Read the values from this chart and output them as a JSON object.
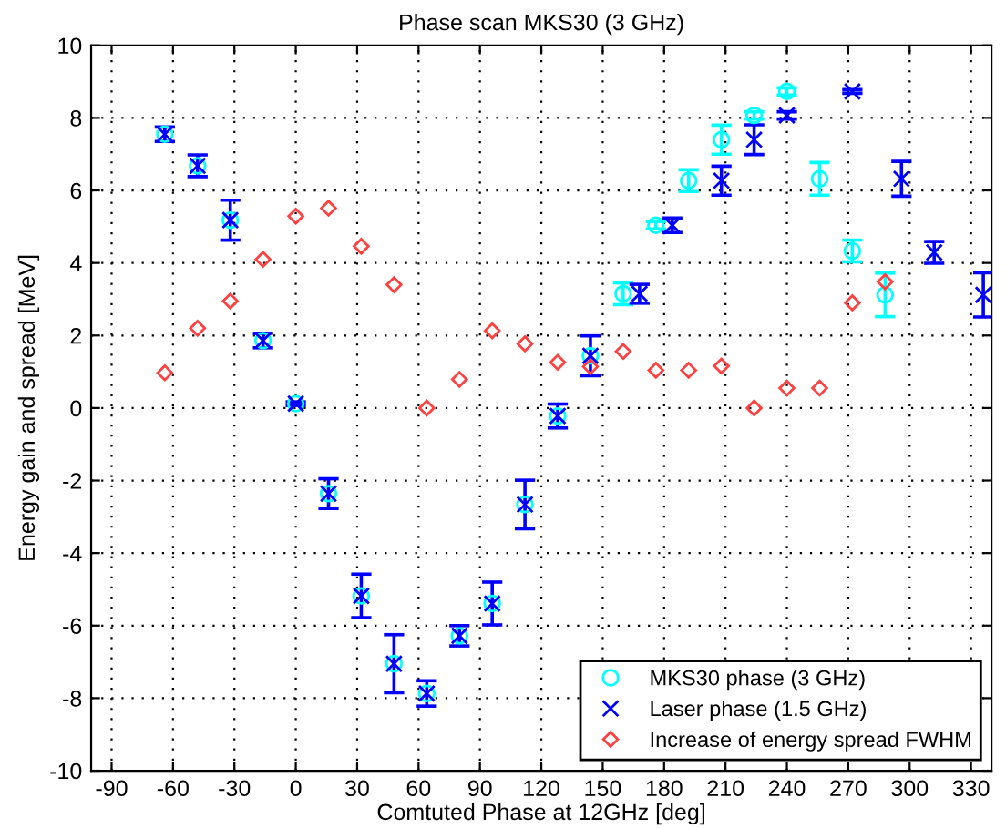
{
  "chart_data": {
    "type": "scatter",
    "title": "Phase scan MKS30 (3 GHz)",
    "xlabel": "Comtuted Phase at 12GHz [deg]",
    "ylabel": "Energy gain and spread [MeV]",
    "xlim": [
      -100,
      340
    ],
    "xticks": [
      -90,
      -60,
      -30,
      0,
      30,
      60,
      90,
      120,
      150,
      180,
      210,
      240,
      270,
      300,
      330
    ],
    "ylim": [
      -10,
      10
    ],
    "yticks": [
      -10,
      -8,
      -6,
      -4,
      -2,
      0,
      2,
      4,
      6,
      8,
      10
    ],
    "grid": true,
    "legend": "bottom right",
    "line_style": "none",
    "series": [
      {
        "name": "MKS30 phase (3 GHz)",
        "color": "#00ffff",
        "marker": "circle",
        "x": [
          -64,
          -48,
          -32,
          -16,
          0,
          16,
          32,
          48,
          64,
          80,
          96,
          112,
          128,
          144,
          160,
          176,
          192,
          208,
          224,
          240,
          256,
          272,
          288
        ],
        "values": [
          7.55,
          6.68,
          5.18,
          1.86,
          0.12,
          -2.36,
          -5.18,
          -7.05,
          -7.87,
          -6.28,
          -5.39,
          -2.66,
          -0.22,
          1.44,
          3.15,
          5.04,
          6.27,
          7.4,
          8.07,
          8.73,
          6.32,
          4.33,
          3.12
        ],
        "errors": [
          null,
          null,
          null,
          null,
          null,
          null,
          null,
          null,
          null,
          null,
          null,
          null,
          null,
          null,
          0.3,
          0.1,
          0.3,
          0.4,
          0.1,
          0.1,
          0.45,
          0.3,
          0.6
        ]
      },
      {
        "name": "Laser phase (1.5 GHz)",
        "color": "#0000ff",
        "marker": "cross",
        "x": [
          -64,
          -48,
          -32,
          -16,
          0,
          16,
          32,
          48,
          64,
          80,
          96,
          112,
          128,
          144,
          168,
          184,
          208,
          224,
          240,
          272,
          296,
          312,
          336
        ],
        "values": [
          7.55,
          6.68,
          5.18,
          1.86,
          0.12,
          -2.36,
          -5.18,
          -7.05,
          -7.87,
          -6.28,
          -5.39,
          -2.66,
          -0.22,
          1.44,
          3.15,
          5.04,
          6.27,
          7.4,
          8.07,
          8.73,
          6.32,
          4.29,
          3.12
        ],
        "errors": [
          0.2,
          0.3,
          0.55,
          0.2,
          0.05,
          0.41,
          0.6,
          0.8,
          0.35,
          0.28,
          0.59,
          0.67,
          0.33,
          0.55,
          0.26,
          0.2,
          0.4,
          0.41,
          0.1,
          0.05,
          0.48,
          0.3,
          0.61
        ]
      },
      {
        "name": "Increase of energy spread FWHM",
        "color": "#ff4040",
        "marker": "diamond",
        "x": [
          -64,
          -48,
          -32,
          -16,
          0,
          16,
          32,
          48,
          64,
          80,
          96,
          112,
          128,
          144,
          160,
          176,
          192,
          208,
          224,
          240,
          256,
          272,
          288
        ],
        "values": [
          0.97,
          2.2,
          2.95,
          4.1,
          5.29,
          5.51,
          4.46,
          3.4,
          0,
          0.79,
          2.13,
          1.77,
          1.26,
          1.14,
          1.56,
          1.04,
          1.04,
          1.16,
          0,
          0.55,
          0.55,
          2.9,
          3.48
        ]
      }
    ]
  }
}
